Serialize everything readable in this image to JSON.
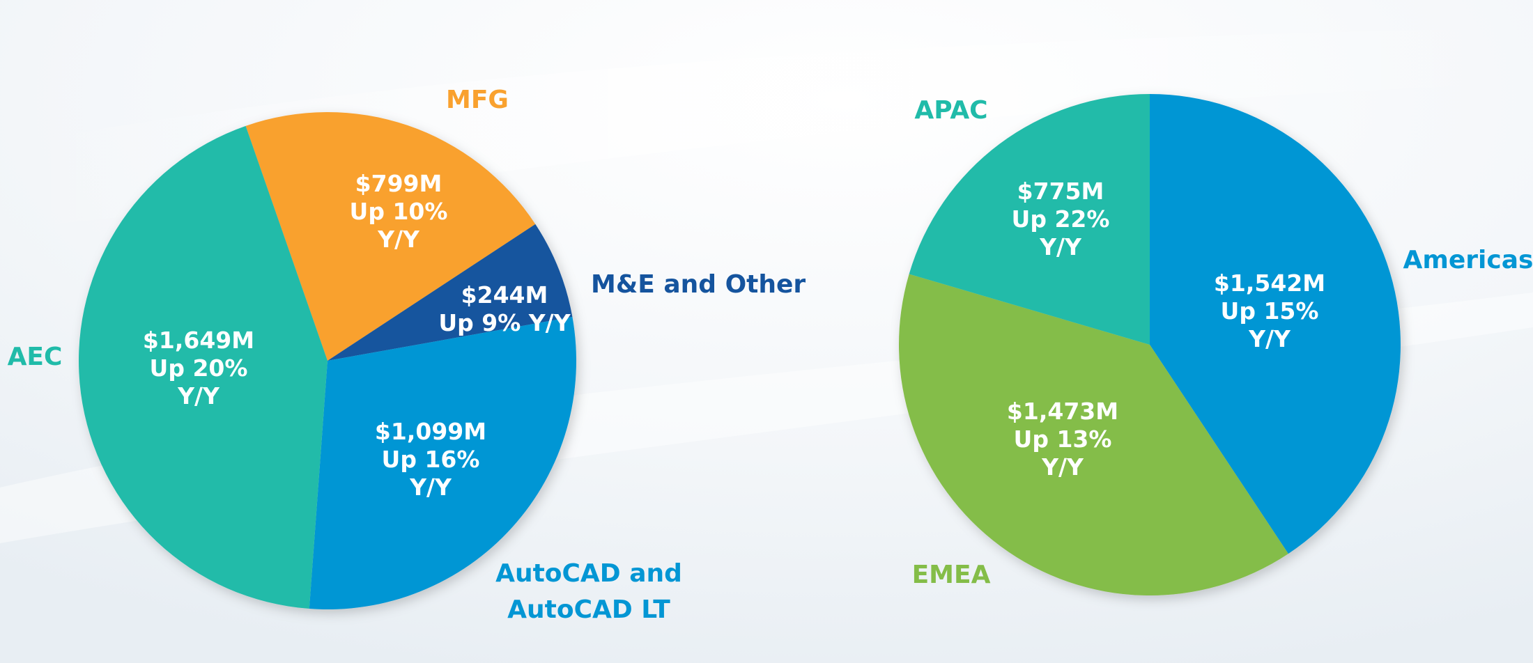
{
  "chart_data": [
    {
      "type": "pie",
      "categories": [
        "MFG",
        "M&E and Other",
        "AutoCAD and AutoCAD LT",
        "AEC"
      ],
      "values": [
        799,
        244,
        1099,
        1649
      ],
      "colors": [
        "#f9a12e",
        "#15549e",
        "#0396d4",
        "#20bba9"
      ],
      "label_colors": [
        "#f9a12e",
        "#15549e",
        "#0396d4",
        "#20bba9"
      ],
      "slice_labels": [
        [
          "$799M",
          "Up 10%",
          "Y/Y"
        ],
        [
          "$244M",
          "Up 9% Y/Y"
        ],
        [
          "$1,099M",
          "Up 16%",
          "Y/Y"
        ],
        [
          "$1,649M",
          "Up 20%",
          "Y/Y"
        ]
      ],
      "outer_labels": [
        [
          "MFG"
        ],
        [
          "M&E and Other"
        ],
        [
          "AutoCAD and",
          "AutoCAD LT"
        ],
        [
          "AEC"
        ]
      ]
    },
    {
      "type": "pie",
      "categories": [
        "Americas",
        "EMEA",
        "APAC"
      ],
      "values": [
        1542,
        1473,
        775
      ],
      "colors": [
        "#0396d4",
        "#84bd48",
        "#20bba9"
      ],
      "label_colors": [
        "#0396d4",
        "#84bd48",
        "#20bba9"
      ],
      "slice_labels": [
        [
          "$1,542M",
          "Up 15%",
          "Y/Y"
        ],
        [
          "$1,473M",
          "Up 13%",
          "Y/Y"
        ],
        [
          "$775M",
          "Up 22%",
          "Y/Y"
        ]
      ],
      "outer_labels": [
        [
          "Americas"
        ],
        [
          "EMEA"
        ],
        [
          "APAC"
        ]
      ]
    }
  ]
}
